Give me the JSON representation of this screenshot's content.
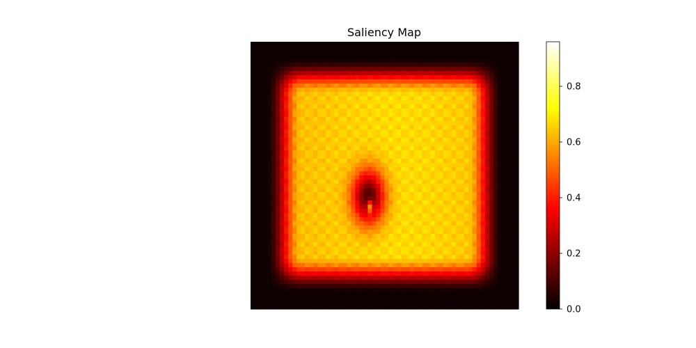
{
  "chart_data": {
    "type": "heatmap",
    "title": "Saliency Map",
    "xlabel": "",
    "ylabel": "",
    "axes_visible": false,
    "colormap": "hot",
    "colormap_stops": [
      "#000000",
      "#ff0000",
      "#ffff00",
      "#ffffff"
    ],
    "value_range": [
      0,
      0.96
    ],
    "grid_size": [
      64,
      64
    ],
    "plateau_value": 0.62,
    "border_value": 0.02,
    "dark_spot": {
      "center_col": 0.44,
      "center_row": 0.58,
      "value": 0.1
    },
    "bright_spot": {
      "center_col": 0.445,
      "center_row": 0.62,
      "value": 0.55
    },
    "colorbar": {
      "ticks": [
        {
          "value": 0.0,
          "label": "0.0"
        },
        {
          "value": 0.2,
          "label": "0.2"
        },
        {
          "value": 0.4,
          "label": "0.4"
        },
        {
          "value": 0.6,
          "label": "0.6"
        },
        {
          "value": 0.8,
          "label": "0.8"
        }
      ]
    }
  }
}
